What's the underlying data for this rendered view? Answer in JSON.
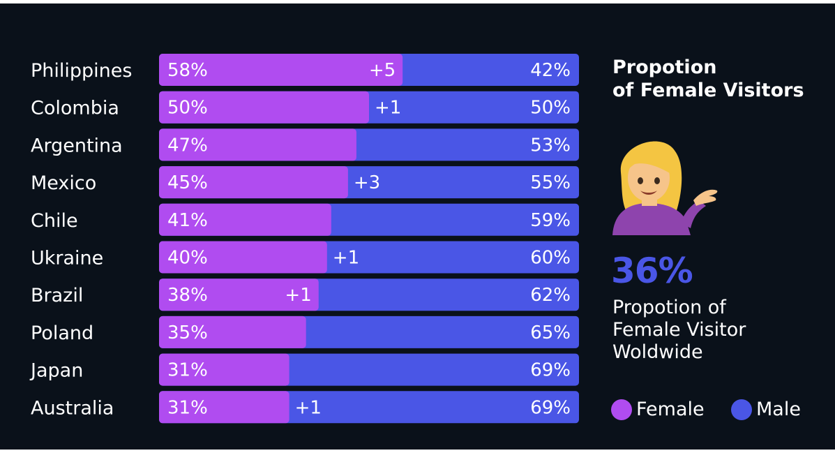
{
  "panel": {
    "title_line1": "Propotion",
    "title_line2": "of Female Visitors",
    "big_value": "36%",
    "desc_line1": "Propotion of",
    "desc_line2": "Female Visitor",
    "desc_line3": "Woldwide",
    "avatar_icon": "woman-tipping-hand-icon"
  },
  "legend": {
    "female_label": "Female",
    "male_label": "Male"
  },
  "colors": {
    "female": "#b04cf0",
    "male": "#4a56e6",
    "background": "#0a111a",
    "text": "#ffffff"
  },
  "chart_data": {
    "type": "bar",
    "orientation": "horizontal",
    "stacked": true,
    "normalized": true,
    "categories": [
      "Philippines",
      "Colombia",
      "Argentina",
      "Mexico",
      "Chile",
      "Ukraine",
      "Brazil",
      "Poland",
      "Japan",
      "Australia"
    ],
    "series": [
      {
        "name": "Female",
        "values": [
          58,
          50,
          47,
          45,
          41,
          40,
          38,
          35,
          31,
          31
        ],
        "labels": [
          "58%",
          "50%",
          "47%",
          "45%",
          "41%",
          "40%",
          "38%",
          "35%",
          "31%",
          "31%"
        ]
      },
      {
        "name": "Male",
        "values": [
          42,
          50,
          53,
          55,
          59,
          60,
          62,
          65,
          69,
          69
        ],
        "labels": [
          "42%",
          "50%",
          "53%",
          "55%",
          "59%",
          "60%",
          "62%",
          "65%",
          "69%",
          "69%"
        ]
      }
    ],
    "changes": [
      "+5",
      "+1",
      "",
      "+3",
      "",
      "+1",
      "+1",
      "",
      "",
      "+1"
    ],
    "xlim": [
      0,
      100
    ],
    "unit": "%"
  }
}
